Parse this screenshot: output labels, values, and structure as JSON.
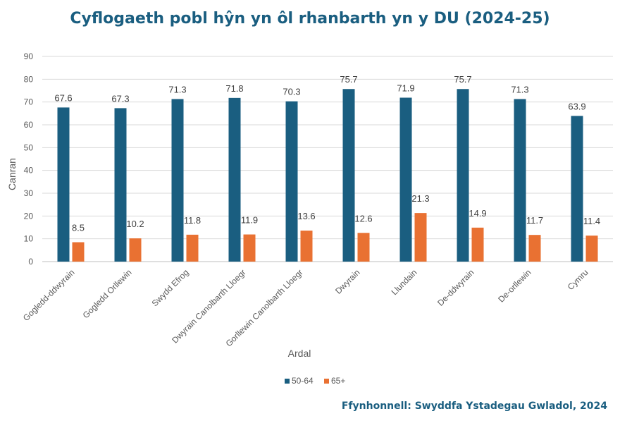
{
  "title": "Cyflogaeth pobl hŷn yn ôl rhanbarth yn y DU (2024-25)",
  "source": "Ffynhonnell: Swyddfa Ystadegau Gwladol, 2024",
  "chart_data": {
    "type": "bar",
    "xlabel": "Ardal",
    "ylabel": "Canran",
    "ylim": [
      0,
      90
    ],
    "yticks": [
      0,
      10,
      20,
      30,
      40,
      50,
      60,
      70,
      80,
      90
    ],
    "grid": true,
    "legend": "bottom",
    "categories": [
      "Gogledd-ddwyrain",
      "Gogledd Orllewin",
      "Swydd Efrog",
      "Dwyrain Canolbarth Lloegr",
      "Gorllewin Canolbarth Lloegr",
      "Dwyrain",
      "Llundain",
      "De-ddwyrain",
      "De-orllewin",
      "Cymru"
    ],
    "series": [
      {
        "name": "50-64",
        "color": "#1a5e80",
        "values": [
          67.6,
          67.3,
          71.3,
          71.8,
          70.3,
          75.7,
          71.9,
          75.7,
          71.3,
          63.9
        ]
      },
      {
        "name": "65+",
        "color": "#e97132",
        "values": [
          8.5,
          10.2,
          11.8,
          11.9,
          13.6,
          12.6,
          21.3,
          14.9,
          11.7,
          11.4
        ]
      }
    ]
  }
}
